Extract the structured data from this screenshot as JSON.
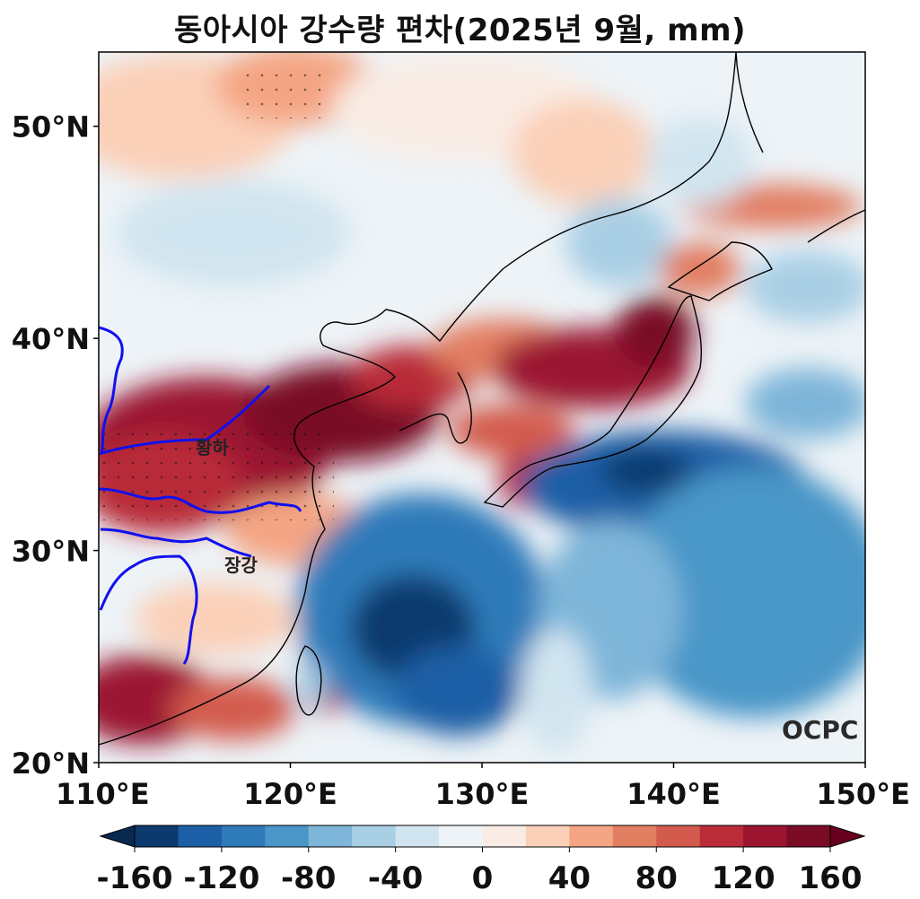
{
  "title": "동아시아 강수량 편차(2025년 9월, mm)",
  "map": {
    "lon_range": [
      110,
      150
    ],
    "lat_range": [
      20,
      53.5
    ],
    "lat_ticks": [
      {
        "value": 20,
        "label": "20°N"
      },
      {
        "value": 30,
        "label": "30°N"
      },
      {
        "value": 40,
        "label": "40°N"
      },
      {
        "value": 50,
        "label": "50°N"
      }
    ],
    "lon_ticks": [
      {
        "value": 110,
        "label": "110°E"
      },
      {
        "value": 120,
        "label": "120°E"
      },
      {
        "value": 130,
        "label": "130°E"
      },
      {
        "value": 140,
        "label": "140°E"
      },
      {
        "value": 150,
        "label": "150°E"
      }
    ],
    "rivers": [
      {
        "name": "황하",
        "label_lon": 116.0,
        "label_lat": 34.8
      },
      {
        "name": "장강",
        "label_lon": 117.2,
        "label_lat": 29.3
      }
    ],
    "credit": "OCPC",
    "river_color": "#1010ee",
    "coast_color": "#000000"
  },
  "colorbar": {
    "levels": [
      -160,
      -140,
      -120,
      -100,
      -80,
      -60,
      -40,
      -20,
      0,
      20,
      40,
      60,
      80,
      100,
      120,
      140,
      160
    ],
    "colors": [
      "#0d3a6e",
      "#1c5fa6",
      "#2f7ab9",
      "#4a96c8",
      "#7eb6d9",
      "#a9cfe5",
      "#d1e5f0",
      "#edf3f7",
      "#f9ece4",
      "#fbd0b8",
      "#f4a583",
      "#e27e62",
      "#d35b4d",
      "#b92c38",
      "#9b1530",
      "#7a0c26"
    ],
    "extend_low": "#082a50",
    "extend_high": "#67001f",
    "tick_labels": [
      "-160",
      "-120",
      "-80",
      "-40",
      "0",
      "40",
      "80",
      "120",
      "160"
    ]
  }
}
